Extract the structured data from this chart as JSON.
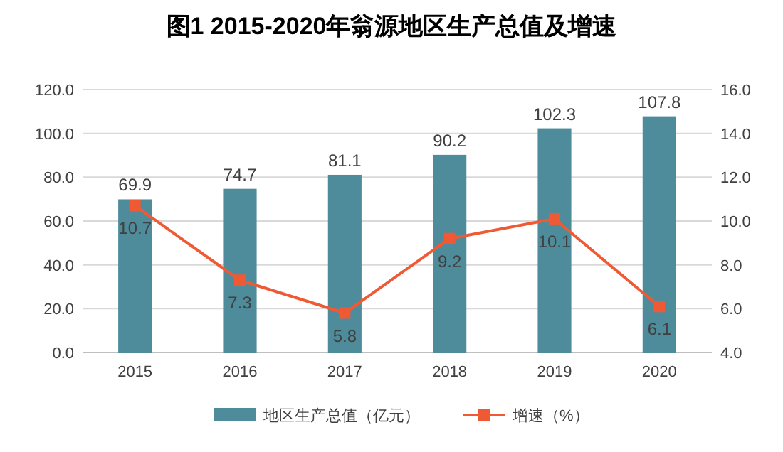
{
  "chart_data": {
    "type": "bar",
    "title": "图1 2015-2020年翁源地区生产总值及增速",
    "categories": [
      "2015",
      "2016",
      "2017",
      "2018",
      "2019",
      "2020"
    ],
    "series": [
      {
        "name": "地区生产总值（亿元）",
        "color": "#4e8c9b",
        "values": [
          69.9,
          74.7,
          81.1,
          90.2,
          102.3,
          107.8
        ]
      },
      {
        "name": "增速（%）",
        "type": "line",
        "axis": "y2",
        "color": "#ef5a34",
        "marker": "square",
        "values": [
          10.7,
          7.3,
          5.8,
          9.2,
          10.1,
          6.1
        ]
      }
    ],
    "ylim": [
      0,
      120
    ],
    "yticks": [
      {
        "value": 0,
        "label": "0.0"
      },
      {
        "value": 20,
        "label": "20.0"
      },
      {
        "value": 40,
        "label": "40.0"
      },
      {
        "value": 60,
        "label": "60.0"
      },
      {
        "value": 80,
        "label": "80.0"
      },
      {
        "value": 100,
        "label": "100.0"
      },
      {
        "value": 120,
        "label": "120.0"
      }
    ],
    "y2lim": [
      4,
      16
    ],
    "y2ticks": [
      {
        "value": 4,
        "label": "4.0"
      },
      {
        "value": 6,
        "label": "6.0"
      },
      {
        "value": 8,
        "label": "8.0"
      },
      {
        "value": 10,
        "label": "10.0"
      },
      {
        "value": 12,
        "label": "12.0"
      },
      {
        "value": 14,
        "label": "14.0"
      },
      {
        "value": 16,
        "label": "16.0"
      }
    ],
    "grid": "y",
    "legend": "bottom",
    "data_labels": true
  }
}
